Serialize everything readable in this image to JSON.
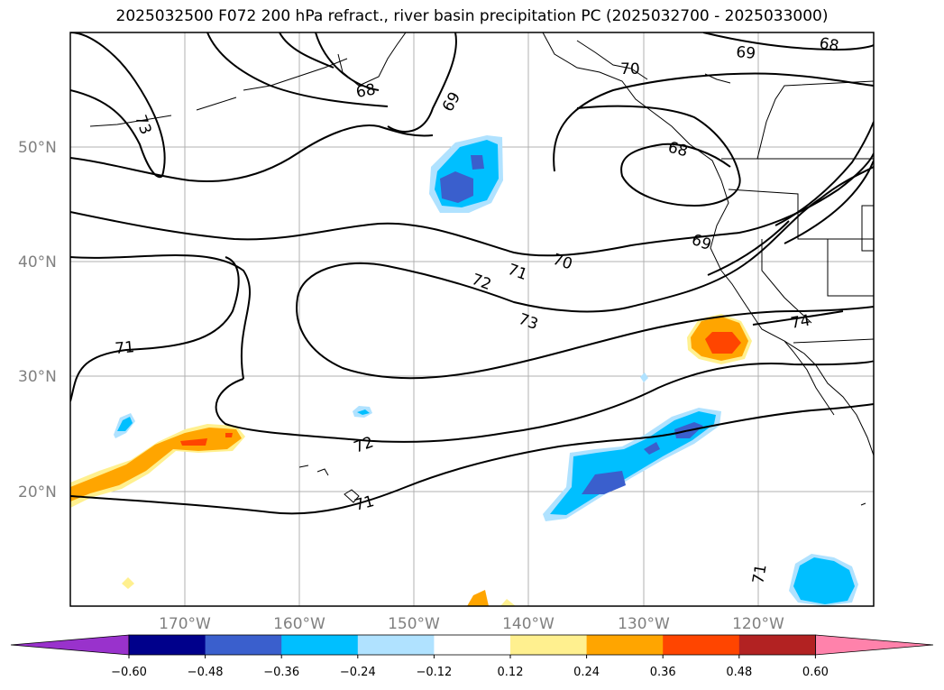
{
  "title": "2025032500 F072 200 hPa refract., river basin precipitation PC (2025032700 - 2025033000)",
  "lat_labels": [
    "50°N",
    "40°N",
    "30°N",
    "20°N"
  ],
  "lon_labels": [
    "170°W",
    "160°W",
    "150°W",
    "140°W",
    "130°W",
    "120°W"
  ],
  "contour_labels": [
    "73",
    "68",
    "69",
    "70",
    "68",
    "69",
    "68",
    "69",
    "70",
    "71",
    "72",
    "73",
    "74",
    "71",
    "72",
    "71",
    "71"
  ],
  "colorbar": {
    "ticks": [
      "−0.60",
      "−0.48",
      "−0.36",
      "−0.24",
      "−0.12",
      "0.12",
      "0.24",
      "0.36",
      "0.48",
      "0.60"
    ],
    "colors": [
      "#9932cc",
      "#00008b",
      "#3a5fcd",
      "#00bfff",
      "#b0e2ff",
      "#ffffff",
      "#fff08f",
      "#ffa500",
      "#ff4500",
      "#b22222",
      "#ff82ab"
    ]
  }
}
